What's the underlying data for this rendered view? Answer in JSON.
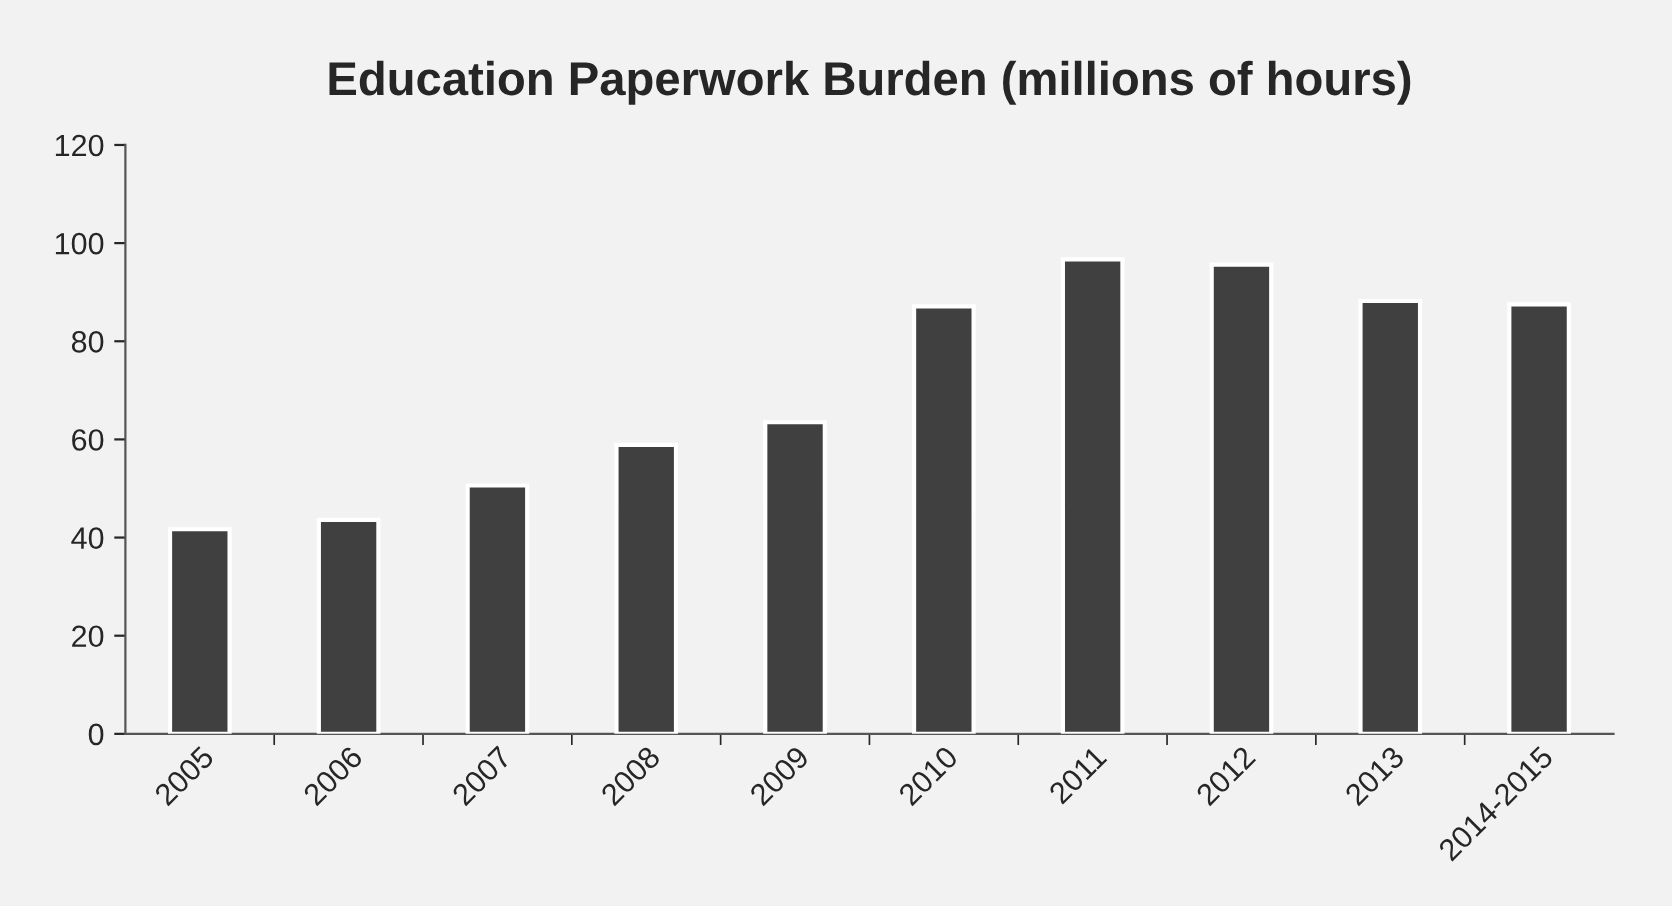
{
  "chart_data": {
    "type": "bar",
    "title": "Education Paperwork Burden (millions of hours)",
    "categories": [
      "2005",
      "2006",
      "2007",
      "2008",
      "2009",
      "2010",
      "2011",
      "2012",
      "2013",
      "2014-2015"
    ],
    "values": [
      41.7,
      43.6,
      50.6,
      58.9,
      63.5,
      87.1,
      96.7,
      95.6,
      88.2,
      87.5
    ],
    "color": "#404040",
    "ylim": [
      0,
      120
    ],
    "yticks": [
      0,
      20,
      40,
      60,
      80,
      100,
      120
    ],
    "grid": false
  }
}
